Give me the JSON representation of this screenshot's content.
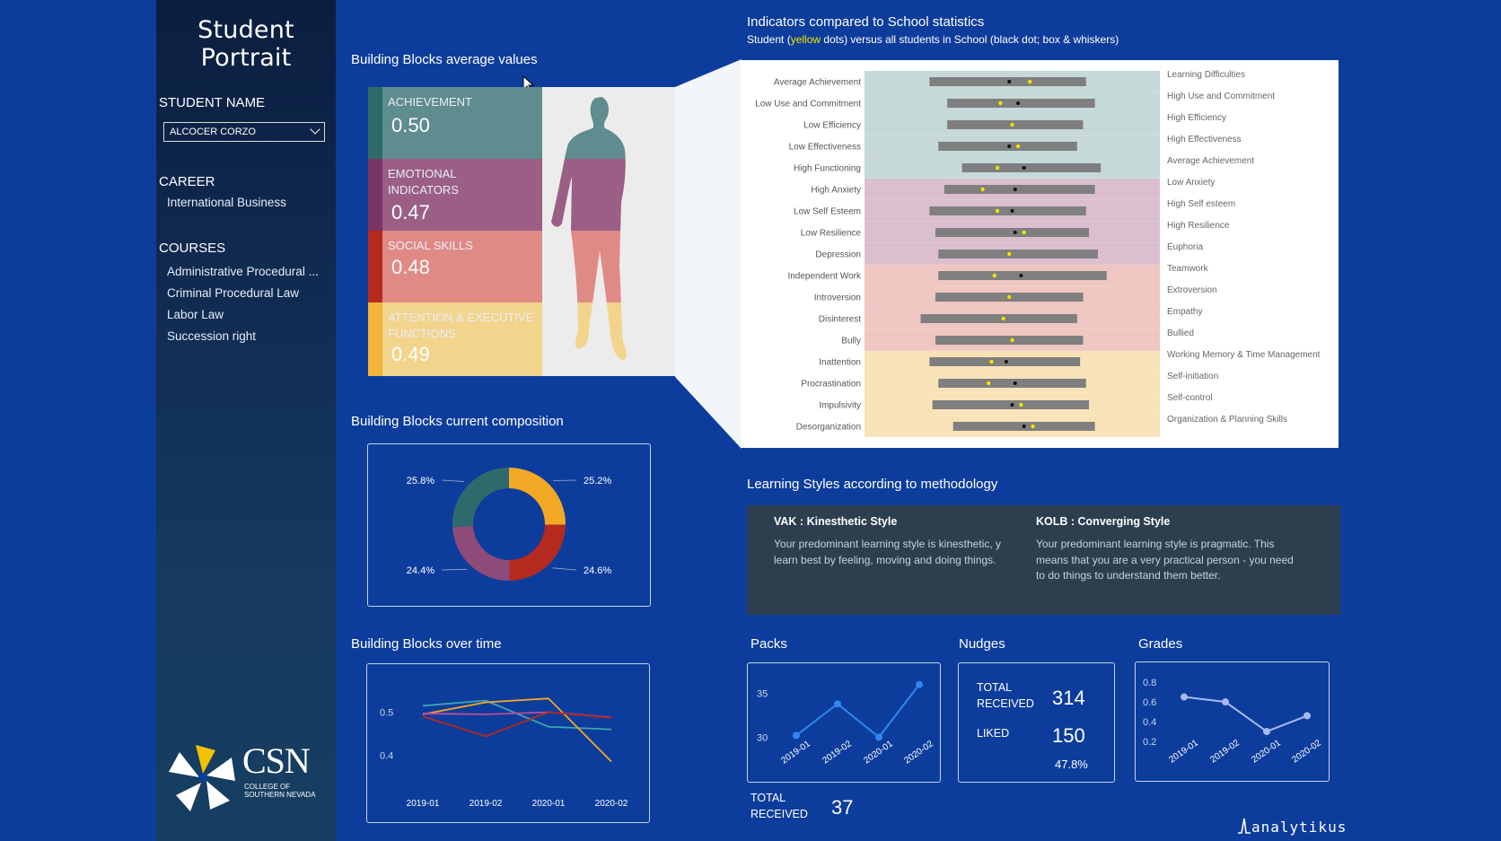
{
  "app_title": "Student Portrait",
  "sidebar": {
    "student_name_label": "STUDENT NAME",
    "student_name_value": "ALCOCER CORZO",
    "career_label": "CAREER",
    "career_value": "International Business",
    "courses_label": "COURSES",
    "courses": [
      "Administrative Procedural ...",
      "Criminal Procedural Law",
      "Labor Law",
      "Succession right"
    ],
    "logo_text": "CSN",
    "logo_subtext_1": "COLLEGE OF",
    "logo_subtext_2": "SOUTHERN NEVADA"
  },
  "blocks_avg": {
    "title": "Building Blocks average values",
    "items": [
      {
        "label": "ACHIEVEMENT",
        "value": "0.50",
        "color": "#5f8c8e",
        "stripe": "#2e6a6c"
      },
      {
        "label": "EMOTIONAL INDICATORS",
        "value": "0.47",
        "color": "#9b5f86",
        "stripe": "#7a3565"
      },
      {
        "label": "SOCIAL SKILLS",
        "value": "0.48",
        "color": "#e08a86",
        "stripe": "#b52a1e"
      },
      {
        "label": "ATTENTION & EXECUTIVE FUNCTIONS",
        "value": "0.49",
        "color": "#f2d48c",
        "stripe": "#f3b43a"
      }
    ]
  },
  "composition": {
    "title": "Building Blocks current composition",
    "chart_data": {
      "type": "pie",
      "donut": true,
      "slices": [
        {
          "label": "25.2%",
          "value": 25.2,
          "color": "#f3a925"
        },
        {
          "label": "24.6%",
          "value": 24.6,
          "color": "#b52a1e"
        },
        {
          "label": "24.4%",
          "value": 24.4,
          "color": "#8e4a78"
        },
        {
          "label": "25.8%",
          "value": 25.8,
          "color": "#2e6a6c"
        }
      ]
    }
  },
  "over_time": {
    "title": "Building Blocks over time",
    "chart_data": {
      "type": "line",
      "categories": [
        "2019-01",
        "2019-02",
        "2020-01",
        "2020-02"
      ],
      "y_ticks": [
        "0.5",
        "0.4"
      ],
      "ylim": [
        0.34,
        0.57
      ],
      "series": [
        {
          "color": "#3aa6b0",
          "values": [
            0.515,
            0.527,
            0.466,
            0.46
          ]
        },
        {
          "color": "#f3a925",
          "values": [
            0.495,
            0.523,
            0.532,
            0.385
          ]
        },
        {
          "color": "#c14a9a",
          "values": [
            0.497,
            0.495,
            0.5,
            0.488
          ]
        },
        {
          "color": "#b52a1e",
          "values": [
            0.49,
            0.444,
            0.5,
            0.487
          ]
        }
      ]
    }
  },
  "indicators": {
    "title": "Indicators compared to School statistics",
    "subtitle_pre": "Student (",
    "subtitle_highlight": "yellow",
    "subtitle_post": " dots) versus all students in School (black dot; box & whiskers)",
    "chart_data": {
      "type": "boxplot",
      "xlim": [
        0,
        1
      ],
      "rows": [
        {
          "left": "Average Achievement",
          "right": "Learning Difficulties",
          "group": 0,
          "box": [
            0.22,
            0.75
          ],
          "median": 0.49,
          "student": 0.56
        },
        {
          "left": "Low Use and Commitment",
          "right": "High Use and Commitment",
          "group": 0,
          "box": [
            0.28,
            0.78
          ],
          "median": 0.52,
          "student": 0.46
        },
        {
          "left": "Low Efficiency",
          "right": "High Efficiency",
          "group": 0,
          "box": [
            0.28,
            0.74
          ],
          "median": 0.5,
          "student": 0.5
        },
        {
          "left": "Low Effectiveness",
          "right": "High Effectiveness",
          "group": 0,
          "box": [
            0.25,
            0.72
          ],
          "median": 0.49,
          "student": 0.52
        },
        {
          "left": "High Functioning",
          "right": "Average Achievement",
          "group": 0,
          "box": [
            0.33,
            0.8
          ],
          "median": 0.54,
          "student": 0.45
        },
        {
          "left": "High Anxiety",
          "right": "Low Anxiety",
          "group": 1,
          "box": [
            0.27,
            0.78
          ],
          "median": 0.51,
          "student": 0.4
        },
        {
          "left": "Low Self Esteem",
          "right": "High Self esteem",
          "group": 1,
          "box": [
            0.22,
            0.75
          ],
          "median": 0.5,
          "student": 0.45
        },
        {
          "left": "Low Resilience",
          "right": "High Resilience",
          "group": 1,
          "box": [
            0.24,
            0.76
          ],
          "median": 0.51,
          "student": 0.54
        },
        {
          "left": "Depression",
          "right": "Euphoria",
          "group": 1,
          "box": [
            0.25,
            0.79
          ],
          "median": 0.49,
          "student": 0.49
        },
        {
          "left": "Independent Work",
          "right": "Teamwork",
          "group": 2,
          "box": [
            0.25,
            0.82
          ],
          "median": 0.53,
          "student": 0.44
        },
        {
          "left": "Introversion",
          "right": "Extroversion",
          "group": 2,
          "box": [
            0.24,
            0.74
          ],
          "median": 0.49,
          "student": 0.49
        },
        {
          "left": "Disinterest",
          "right": "Empathy",
          "group": 2,
          "box": [
            0.19,
            0.72
          ],
          "median": 0.47,
          "student": 0.47
        },
        {
          "left": "Bully",
          "right": "Bullied",
          "group": 2,
          "box": [
            0.24,
            0.74
          ],
          "median": 0.5,
          "student": 0.5
        },
        {
          "left": "Inattention",
          "right": "Working Memory & Time Management",
          "group": 3,
          "box": [
            0.22,
            0.73
          ],
          "median": 0.48,
          "student": 0.43
        },
        {
          "left": "Procrastination",
          "right": "Self-initiation",
          "group": 3,
          "box": [
            0.25,
            0.75
          ],
          "median": 0.51,
          "student": 0.42
        },
        {
          "left": "Impulsivity",
          "right": "Self-control",
          "group": 3,
          "box": [
            0.23,
            0.76
          ],
          "median": 0.5,
          "student": 0.53
        },
        {
          "left": "Desorganization",
          "right": "Organization & Planning Skills",
          "group": 3,
          "box": [
            0.3,
            0.78
          ],
          "median": 0.54,
          "student": 0.57
        }
      ],
      "group_colors": [
        "#c6d8d8",
        "#dbbfcf",
        "#efc6c1",
        "#f8e3b8"
      ],
      "box_color": "#7f7f7f",
      "student_color": "#f2e300"
    }
  },
  "learning": {
    "title": "Learning Styles according to methodology",
    "vak_title": "VAK : Kinesthetic Style",
    "vak_text": "Your predominant learning style is kinesthetic, y learn best by feeling, moving and doing things.",
    "kolb_title": "KOLB : Converging Style",
    "kolb_text": "Your predominant learning style is pragmatic. This means that you are a very practical person - you need to do things to understand them better."
  },
  "packs": {
    "title": "Packs",
    "chart_data": {
      "type": "line",
      "categories": [
        "2019-01",
        "2019-02",
        "2020-01",
        "2020-02"
      ],
      "values": [
        30.2,
        33.8,
        30,
        36
      ],
      "y_ticks": [
        "35",
        "30"
      ],
      "ylim": [
        28.2,
        37.4
      ],
      "color": "#2f86f0"
    },
    "total_label": "TOTAL RECEIVED",
    "total_value": "37"
  },
  "nudges": {
    "title": "Nudges",
    "total_label": "TOTAL RECEIVED",
    "total_value": "314",
    "liked_label": "LIKED",
    "liked_value": "150",
    "liked_pct": "47.8%"
  },
  "grades": {
    "title": "Grades",
    "chart_data": {
      "type": "line",
      "categories": [
        "2019-01",
        "2019-02",
        "2020-01",
        "2020-02"
      ],
      "values": [
        0.65,
        0.6,
        0.3,
        0.46
      ],
      "y_ticks": [
        "0.8",
        "0.6",
        "0.4",
        "0.2"
      ],
      "ylim": [
        0.09,
        0.91
      ],
      "color": "#a6b9ee"
    }
  },
  "brand": "analytikus"
}
